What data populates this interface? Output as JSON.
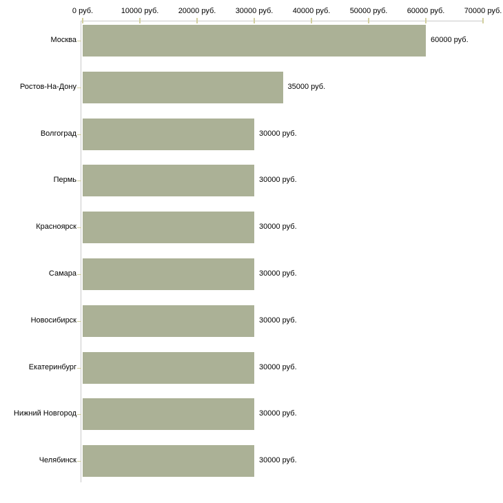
{
  "chart_data": {
    "type": "bar",
    "orientation": "horizontal",
    "title": "",
    "xlabel": "",
    "ylabel": "",
    "categories": [
      "Москва",
      "Ростов-На-Дону",
      "Волгоград",
      "Пермь",
      "Красноярск",
      "Самара",
      "Новосибирск",
      "Екатеринбург",
      "Нижний Новгород",
      "Челябинск"
    ],
    "values": [
      60000,
      35000,
      30000,
      30000,
      30000,
      30000,
      30000,
      30000,
      30000,
      30000
    ],
    "value_labels": [
      "60000 руб.",
      "35000 руб.",
      "30000 руб.",
      "30000 руб.",
      "30000 руб.",
      "30000 руб.",
      "30000 руб.",
      "30000 руб.",
      "30000 руб.",
      "30000 руб."
    ],
    "x_axis": {
      "position": "top",
      "min": 0,
      "max": 70000,
      "tick_step": 10000,
      "tick_labels": [
        "0 руб.",
        "10000 руб.",
        "20000 руб.",
        "30000 руб.",
        "40000 руб.",
        "50000 руб.",
        "60000 руб.",
        "70000 руб."
      ]
    },
    "grid": false,
    "legend": false,
    "colors": {
      "bar": "#abb196",
      "axis_line": "#c9c9c9",
      "tick_mark": "#d2cf9e",
      "text": "#000000",
      "background": "#ffffff"
    }
  }
}
